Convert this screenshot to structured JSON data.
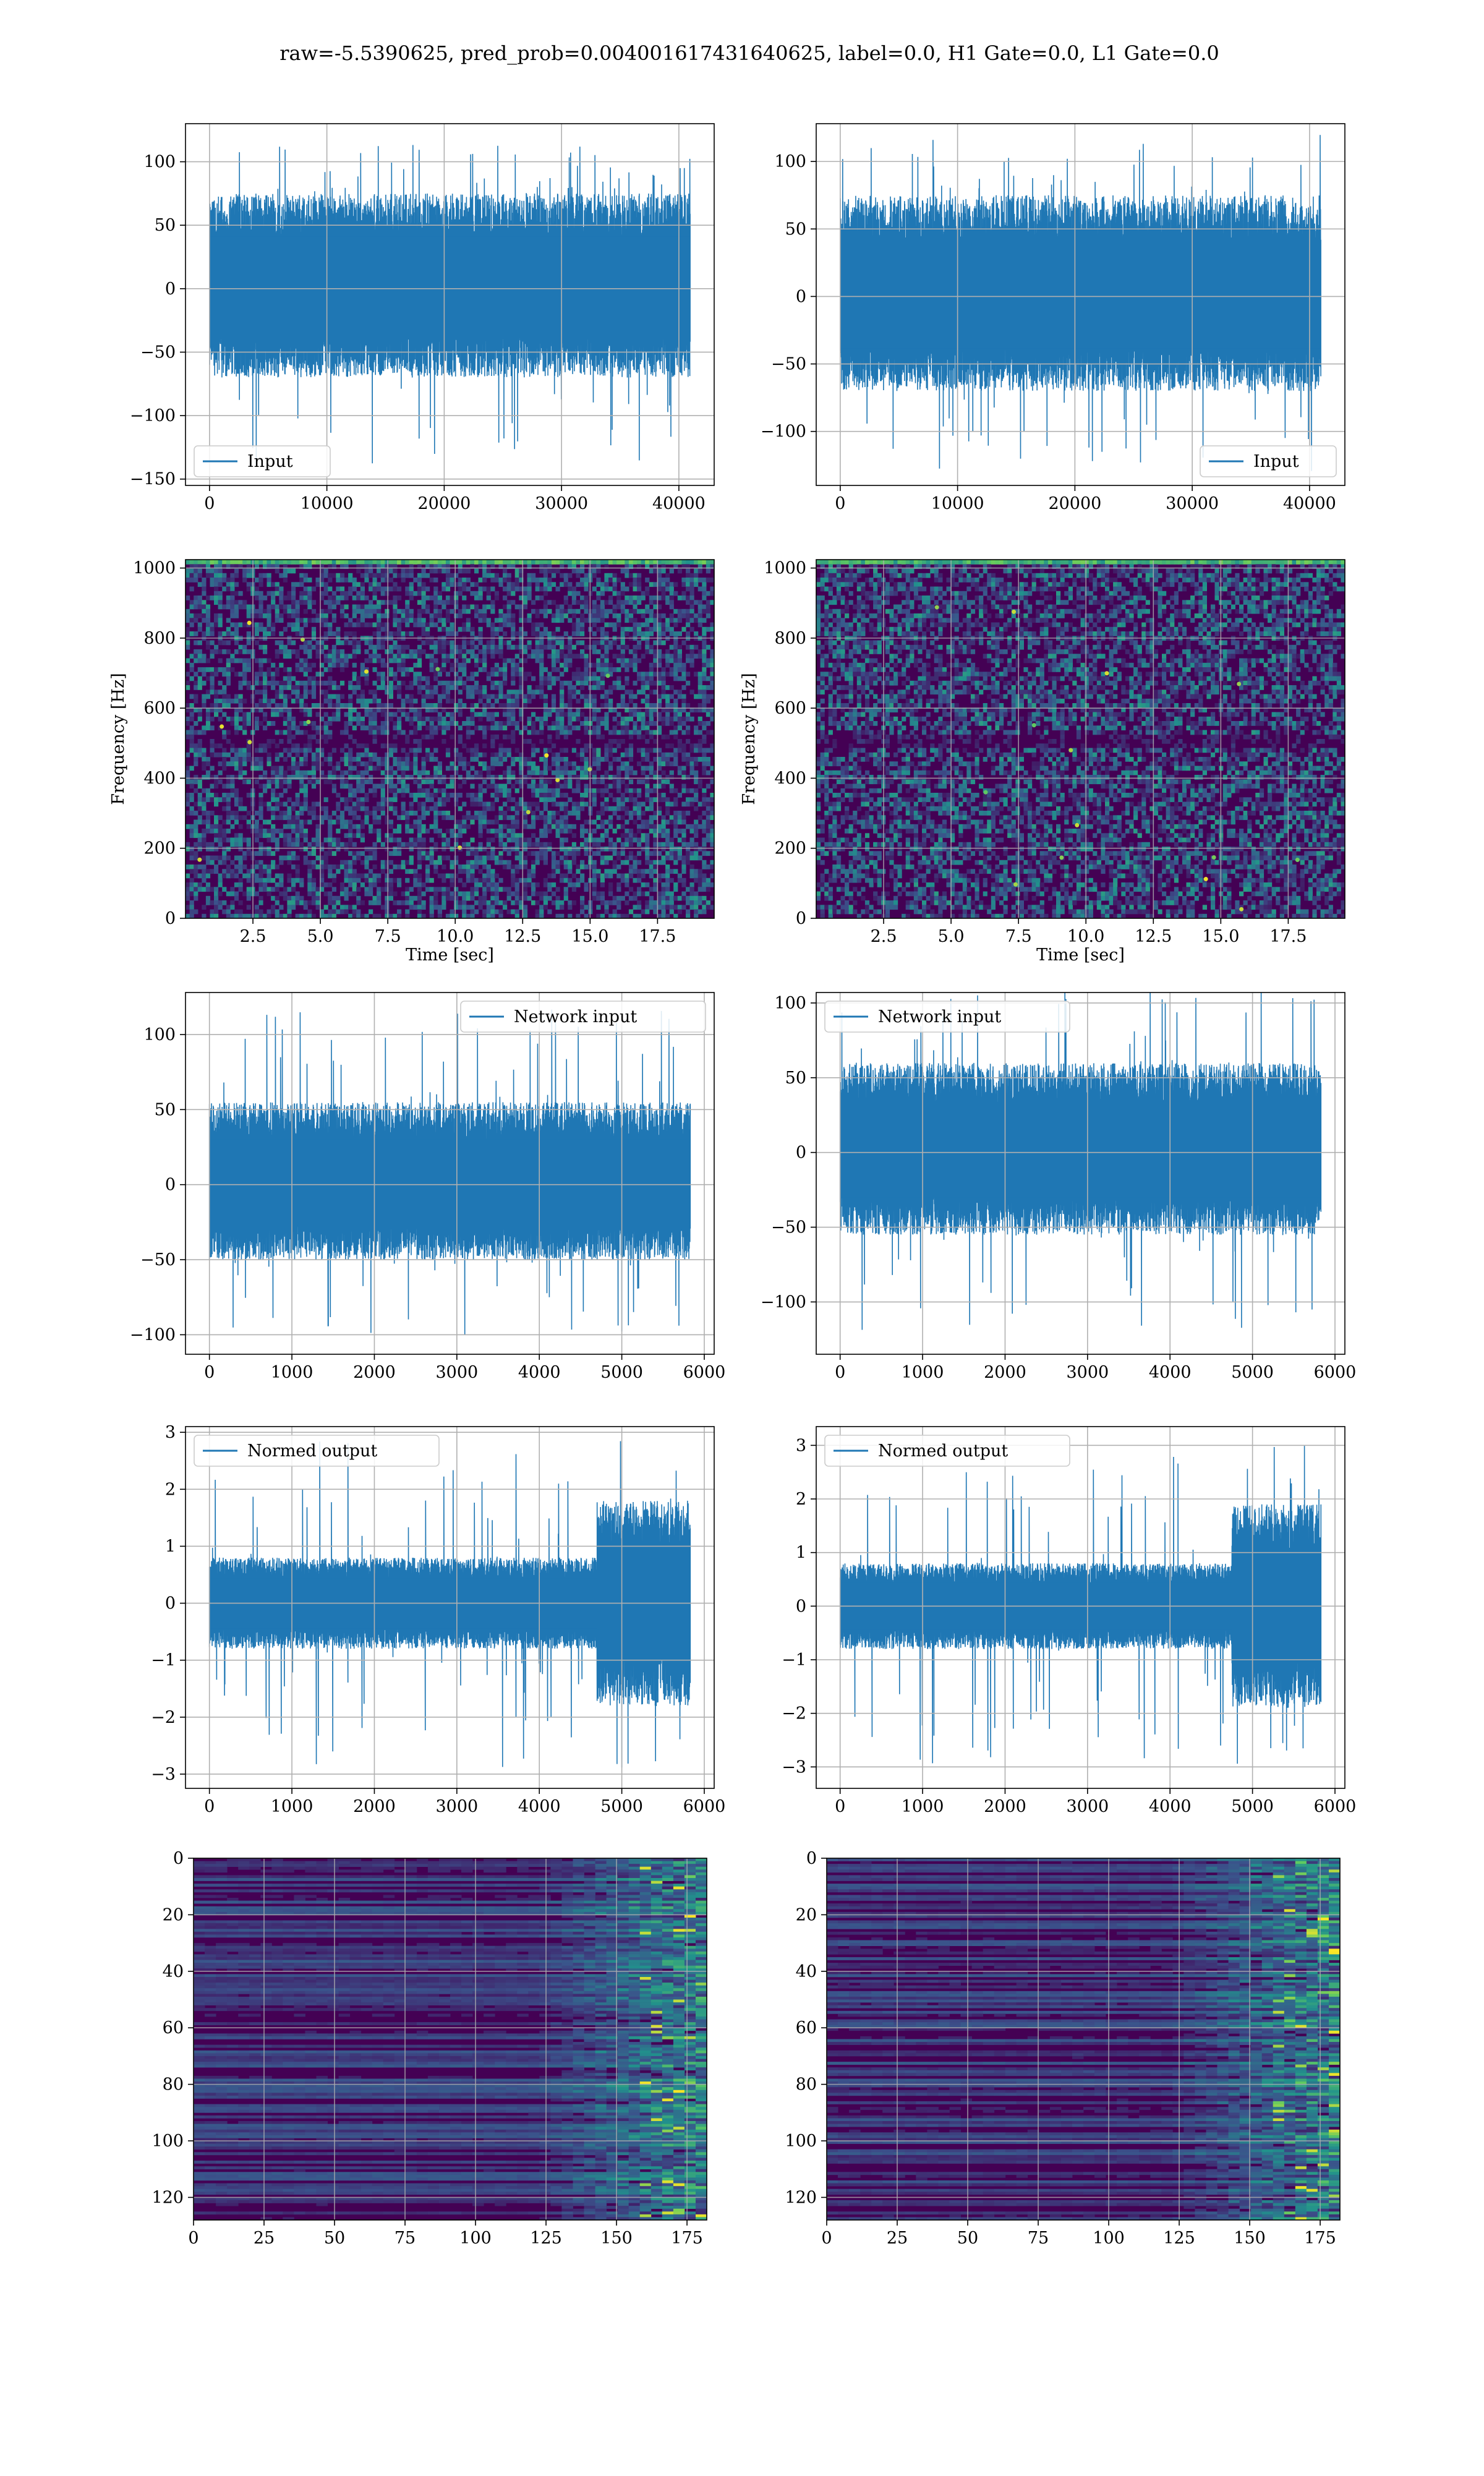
{
  "figure": {
    "title": "raw=-5.5390625, pred_prob=0.004001617431640625, label=0.0, H1 Gate=0.0, L1 Gate=0.0"
  },
  "colors": {
    "line": "#1f77b4",
    "grid": "#b0b0b0",
    "viridis_dark": "#440154",
    "viridis_mid": "#21918c",
    "viridis_light": "#5ec962",
    "viridis_yellow": "#fde725"
  },
  "chart_data": [
    {
      "id": "input-h1",
      "type": "line",
      "series": [
        {
          "name": "Input",
          "n": 40960,
          "envelope": [
            -70,
            75
          ],
          "peaks": [
            -140,
            115
          ]
        }
      ],
      "xlim": [
        -2048,
        43008
      ],
      "ylim": [
        -155,
        130
      ],
      "xticks": [
        0,
        10000,
        20000,
        30000,
        40000
      ],
      "yticks": [
        100,
        50,
        0,
        -50,
        -100,
        -150
      ],
      "legend": "lower left",
      "grid": true,
      "xlabel": "",
      "ylabel": ""
    },
    {
      "id": "input-l1",
      "type": "line",
      "series": [
        {
          "name": "Input",
          "n": 40960,
          "envelope": [
            -70,
            75
          ],
          "peaks": [
            -130,
            120
          ]
        }
      ],
      "xlim": [
        -2048,
        43008
      ],
      "ylim": [
        -140,
        128
      ],
      "xticks": [
        0,
        10000,
        20000,
        30000,
        40000
      ],
      "yticks": [
        100,
        50,
        0,
        -50,
        -100
      ],
      "legend": "lower right",
      "grid": true,
      "xlabel": "",
      "ylabel": ""
    },
    {
      "id": "spec-h1",
      "type": "heatmap",
      "xlim": [
        0,
        19.6
      ],
      "ylim": [
        0,
        1024
      ],
      "xticks": [
        2.5,
        5.0,
        7.5,
        10.0,
        12.5,
        15.0,
        17.5
      ],
      "yticks": [
        0,
        200,
        400,
        600,
        800,
        1000
      ],
      "xlabel": "Time [sec]",
      "ylabel": "Frequency [Hz]",
      "grid": true
    },
    {
      "id": "spec-l1",
      "type": "heatmap",
      "xlim": [
        0,
        19.6
      ],
      "ylim": [
        0,
        1024
      ],
      "xticks": [
        2.5,
        5.0,
        7.5,
        10.0,
        12.5,
        15.0,
        17.5
      ],
      "yticks": [
        0,
        200,
        400,
        600,
        800,
        1000
      ],
      "xlabel": "Time [sec]",
      "ylabel": "Frequency [Hz]",
      "grid": true
    },
    {
      "id": "netin-h1",
      "type": "line",
      "series": [
        {
          "name": "Network input",
          "n": 5830,
          "envelope": [
            -50,
            55
          ],
          "peaks": [
            -100,
            120
          ]
        }
      ],
      "xlim": [
        -290,
        6120
      ],
      "ylim": [
        -113,
        128
      ],
      "xticks": [
        0,
        1000,
        2000,
        3000,
        4000,
        5000,
        6000
      ],
      "yticks": [
        100,
        50,
        0,
        -50,
        -100
      ],
      "legend": "upper right",
      "grid": true,
      "xlabel": "",
      "ylabel": ""
    },
    {
      "id": "netin-l1",
      "type": "line",
      "series": [
        {
          "name": "Network input",
          "n": 5830,
          "envelope": [
            -55,
            60
          ],
          "peaks": [
            -120,
            110
          ]
        }
      ],
      "xlim": [
        -290,
        6120
      ],
      "ylim": [
        -135,
        107
      ],
      "xticks": [
        0,
        1000,
        2000,
        3000,
        4000,
        5000,
        6000
      ],
      "yticks": [
        100,
        50,
        0,
        -50,
        -100
      ],
      "legend": "upper left",
      "grid": true,
      "xlabel": "",
      "ylabel": ""
    },
    {
      "id": "norm-h1",
      "type": "line",
      "series": [
        {
          "name": "Normed output",
          "n": 5830,
          "envelope": [
            -0.8,
            0.8
          ],
          "late_envelope": [
            -1.8,
            1.8
          ],
          "late_start": 4700,
          "peaks": [
            -2.9,
            2.9
          ]
        }
      ],
      "xlim": [
        -290,
        6120
      ],
      "ylim": [
        -3.25,
        3.1
      ],
      "xticks": [
        0,
        1000,
        2000,
        3000,
        4000,
        5000,
        6000
      ],
      "yticks": [
        3,
        2,
        1,
        0,
        -1,
        -2,
        -3
      ],
      "legend": "upper left",
      "grid": true,
      "xlabel": "",
      "ylabel": ""
    },
    {
      "id": "norm-l1",
      "type": "line",
      "series": [
        {
          "name": "Normed output",
          "n": 5830,
          "envelope": [
            -0.8,
            0.8
          ],
          "late_envelope": [
            -1.9,
            1.9
          ],
          "late_start": 4750,
          "peaks": [
            -3.0,
            3.0
          ]
        }
      ],
      "xlim": [
        -290,
        6120
      ],
      "ylim": [
        -3.4,
        3.35
      ],
      "xticks": [
        0,
        1000,
        2000,
        3000,
        4000,
        5000,
        6000
      ],
      "yticks": [
        3,
        2,
        1,
        0,
        -1,
        -2,
        -3
      ],
      "legend": "upper left",
      "grid": true,
      "xlabel": "",
      "ylabel": ""
    },
    {
      "id": "feat-h1",
      "type": "heatmap",
      "rows": 128,
      "cols": 182,
      "xlim": [
        0,
        182
      ],
      "ylim": [
        128,
        0
      ],
      "xticks": [
        0,
        25,
        50,
        75,
        100,
        125,
        150,
        175
      ],
      "yticks": [
        0,
        20,
        40,
        60,
        80,
        100,
        120
      ],
      "grid": true,
      "xlabel": "",
      "ylabel": ""
    },
    {
      "id": "feat-l1",
      "type": "heatmap",
      "rows": 128,
      "cols": 182,
      "xlim": [
        0,
        182
      ],
      "ylim": [
        128,
        0
      ],
      "xticks": [
        0,
        25,
        50,
        75,
        100,
        125,
        150,
        175
      ],
      "yticks": [
        0,
        20,
        40,
        60,
        80,
        100,
        120
      ],
      "grid": true,
      "xlabel": "",
      "ylabel": ""
    }
  ]
}
